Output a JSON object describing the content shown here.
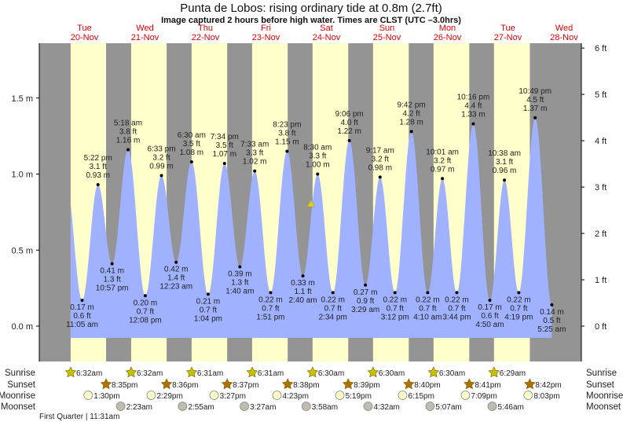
{
  "header": {
    "title": "Punta de Lobos: rising  ordinary tide at 0.8m (2.7ft)",
    "subtitle": "Image captured 2 hours before high water. Times are CLST (UTC –3.0hrs)"
  },
  "colors": {
    "night": "#949494",
    "day": "#ffffcc",
    "water": "#9fb1ff",
    "day_label": "#e00000",
    "sunrise": "#c8c000",
    "sunset": "#b07000",
    "moonrise": "#ffffcc",
    "moonset": "#c0bcb0"
  },
  "chart_data": {
    "type": "area",
    "title": "Punta de Lobos: rising  ordinary tide at 0.8m (2.7ft)",
    "x_unit": "hours since Tue 20-Nov 00:00",
    "y_left_label": "m",
    "y_right_label": "ft",
    "ylim_m": [
      -0.08,
      1.85
    ],
    "left_ticks": [
      {
        "v": 0,
        "label": "0.0 m"
      },
      {
        "v": 0.5,
        "label": "0.5 m"
      },
      {
        "v": 1.0,
        "label": "1.0 m"
      },
      {
        "v": 1.5,
        "label": "1.5 m"
      }
    ],
    "right_ticks": [
      {
        "v": 0,
        "label": "0 ft"
      },
      {
        "v": 1,
        "label": "1 ft"
      },
      {
        "v": 2,
        "label": "2 ft"
      },
      {
        "v": 3,
        "label": "3 ft"
      },
      {
        "v": 4,
        "label": "4 ft"
      },
      {
        "v": 5,
        "label": "5 ft"
      },
      {
        "v": 6,
        "label": "6 ft"
      }
    ],
    "days": [
      {
        "name": "Tue",
        "date": "20-Nov",
        "noon": 12
      },
      {
        "name": "Wed",
        "date": "21-Nov",
        "noon": 36
      },
      {
        "name": "Thu",
        "date": "22-Nov",
        "noon": 60
      },
      {
        "name": "Fri",
        "date": "23-Nov",
        "noon": 84
      },
      {
        "name": "Sat",
        "date": "24-Nov",
        "noon": 108
      },
      {
        "name": "Sun",
        "date": "25-Nov",
        "noon": 132
      },
      {
        "name": "Mon",
        "date": "26-Nov",
        "noon": 156
      },
      {
        "name": "Tue",
        "date": "27-Nov",
        "noon": 180
      },
      {
        "name": "Wed",
        "date": "28-Nov",
        "noon": 204
      }
    ],
    "extremes": [
      {
        "t": 11.08,
        "type": "low",
        "time": "11:05 am",
        "ft": "0.6 ft",
        "m": 0.17,
        "m_label": "0.17 m"
      },
      {
        "t": 17.37,
        "type": "high",
        "time": "5:22 pm",
        "ft": "3.1 ft",
        "m": 0.93,
        "m_label": "0.93 m"
      },
      {
        "t": 22.95,
        "type": "low",
        "time": "10:57 pm",
        "ft": "1.3 ft",
        "m": 0.41,
        "m_label": "0.41 m"
      },
      {
        "t": 29.3,
        "type": "high",
        "time": "5:18 am",
        "ft": "3.8 ft",
        "m": 1.16,
        "m_label": "1.16 m"
      },
      {
        "t": 36.13,
        "type": "low",
        "time": "12:08 pm",
        "ft": "0.7 ft",
        "m": 0.2,
        "m_label": "0.20 m"
      },
      {
        "t": 42.55,
        "type": "high",
        "time": "6:33 pm",
        "ft": "3.2 ft",
        "m": 0.99,
        "m_label": "0.99 m"
      },
      {
        "t": 48.38,
        "type": "low",
        "time": "12:23 am",
        "ft": "1.4 ft",
        "m": 0.42,
        "m_label": "0.42 m"
      },
      {
        "t": 54.5,
        "type": "high",
        "time": "6:30 am",
        "ft": "3.5 ft",
        "m": 1.08,
        "m_label": "1.08 m"
      },
      {
        "t": 61.07,
        "type": "low",
        "time": "1:04 pm",
        "ft": "0.7 ft",
        "m": 0.21,
        "m_label": "0.21 m"
      },
      {
        "t": 67.57,
        "type": "high",
        "time": "7:34 pm",
        "ft": "3.5 ft",
        "m": 1.07,
        "m_label": "1.07 m"
      },
      {
        "t": 73.67,
        "type": "low",
        "time": "1:40 am",
        "ft": "1.3 ft",
        "m": 0.39,
        "m_label": "0.39 m"
      },
      {
        "t": 79.55,
        "type": "high",
        "time": "7:33 am",
        "ft": "3.3 ft",
        "m": 1.02,
        "m_label": "1.02 m"
      },
      {
        "t": 85.85,
        "type": "low",
        "time": "1:51 pm",
        "ft": "0.7 ft",
        "m": 0.22,
        "m_label": "0.22 m"
      },
      {
        "t": 92.38,
        "type": "high",
        "time": "8:23 pm",
        "ft": "3.8 ft",
        "m": 1.15,
        "m_label": "1.15 m"
      },
      {
        "t": 98.67,
        "type": "low",
        "time": "2:40 am",
        "ft": "1.1 ft",
        "m": 0.33,
        "m_label": "0.33 m"
      },
      {
        "t": 104.5,
        "type": "high",
        "time": "8:30 am",
        "ft": "3.3 ft",
        "m": 1.0,
        "m_label": "1.00 m"
      },
      {
        "t": 110.57,
        "type": "low",
        "time": "2:34 pm",
        "ft": "0.7 ft",
        "m": 0.22,
        "m_label": "0.22 m"
      },
      {
        "t": 117.1,
        "type": "high",
        "time": "9:06 pm",
        "ft": "4.0 ft",
        "m": 1.22,
        "m_label": "1.22 m"
      },
      {
        "t": 123.48,
        "type": "low",
        "time": "3:29 am",
        "ft": "0.9 ft",
        "m": 0.27,
        "m_label": "0.27 m"
      },
      {
        "t": 129.28,
        "type": "high",
        "time": "9:17 am",
        "ft": "3.2 ft",
        "m": 0.98,
        "m_label": "0.98 m"
      },
      {
        "t": 135.2,
        "type": "low",
        "time": "3:12 pm",
        "ft": "0.7 ft",
        "m": 0.22,
        "m_label": "0.22 m"
      },
      {
        "t": 141.7,
        "type": "high",
        "time": "9:42 pm",
        "ft": "4.2 ft",
        "m": 1.28,
        "m_label": "1.28 m"
      },
      {
        "t": 148.17,
        "type": "low",
        "time": "4:10 am",
        "ft": "0.7 ft",
        "m": 0.22,
        "m_label": "0.22 m"
      },
      {
        "t": 154.02,
        "type": "high",
        "time": "10:01 am",
        "ft": "3.2 ft",
        "m": 0.97,
        "m_label": "0.97 m"
      },
      {
        "t": 159.73,
        "type": "low",
        "time": "3:44 pm",
        "ft": "0.7 ft",
        "m": 0.22,
        "m_label": "0.22 m"
      },
      {
        "t": 166.27,
        "type": "high",
        "time": "10:16 pm",
        "ft": "4.4 ft",
        "m": 1.33,
        "m_label": "1.33 m"
      },
      {
        "t": 172.83,
        "type": "low",
        "time": "4:50 am",
        "ft": "0.6 ft",
        "m": 0.17,
        "m_label": "0.17 m"
      },
      {
        "t": 178.63,
        "type": "high",
        "time": "10:38 am",
        "ft": "3.1 ft",
        "m": 0.96,
        "m_label": "0.96 m"
      },
      {
        "t": 184.32,
        "type": "low",
        "time": "4:19 pm",
        "ft": "0.7 ft",
        "m": 0.22,
        "m_label": "0.22 m"
      },
      {
        "t": 190.82,
        "type": "high",
        "time": "10:49 pm",
        "ft": "4.5 ft",
        "m": 1.37,
        "m_label": "1.37 m"
      },
      {
        "t": 197.42,
        "type": "low",
        "time": "5:25 am",
        "ft": "0.5 ft",
        "m": 0.14,
        "m_label": "0.14 m"
      }
    ],
    "current": {
      "t": 101.9,
      "m": 0.8
    },
    "sunrise": [
      {
        "t": 6.53,
        "label": "6:32am"
      },
      {
        "t": 30.53,
        "label": "6:32am"
      },
      {
        "t": 54.52,
        "label": "6:31am"
      },
      {
        "t": 78.52,
        "label": "6:31am"
      },
      {
        "t": 102.5,
        "label": "6:30am"
      },
      {
        "t": 126.5,
        "label": "6:30am"
      },
      {
        "t": 150.5,
        "label": "6:30am"
      },
      {
        "t": 174.48,
        "label": "6:29am"
      }
    ],
    "sunset": [
      {
        "t": 20.58,
        "label": "8:35pm"
      },
      {
        "t": 44.6,
        "label": "8:36pm"
      },
      {
        "t": 68.62,
        "label": "8:37pm"
      },
      {
        "t": 92.63,
        "label": "8:38pm"
      },
      {
        "t": 116.65,
        "label": "8:39pm"
      },
      {
        "t": 140.67,
        "label": "8:40pm"
      },
      {
        "t": 164.68,
        "label": "8:41pm"
      },
      {
        "t": 188.7,
        "label": "8:42pm"
      }
    ],
    "moonrise": [
      {
        "t": 13.5,
        "label": "1:30pm"
      },
      {
        "t": 38.48,
        "label": "2:29pm"
      },
      {
        "t": 63.45,
        "label": "3:27pm"
      },
      {
        "t": 88.38,
        "label": "4:23pm"
      },
      {
        "t": 113.32,
        "label": "5:19pm"
      },
      {
        "t": 138.25,
        "label": "6:15pm"
      },
      {
        "t": 163.15,
        "label": "7:09pm"
      },
      {
        "t": 188.05,
        "label": "8:03pm"
      }
    ],
    "moonset": [
      {
        "t": 26.38,
        "label": "2:23am"
      },
      {
        "t": 50.92,
        "label": "2:55am"
      },
      {
        "t": 75.45,
        "label": "3:27am"
      },
      {
        "t": 99.97,
        "label": "3:58am"
      },
      {
        "t": 124.53,
        "label": "4:32am"
      },
      {
        "t": 149.12,
        "label": "5:07am"
      },
      {
        "t": 173.77,
        "label": "5:46am"
      }
    ],
    "row_labels": {
      "sunrise": "Sunrise",
      "sunset": "Sunset",
      "moonrise": "Moonrise",
      "moonset": "Moonset"
    },
    "moon_phase": "First Quarter | 11:31am"
  }
}
